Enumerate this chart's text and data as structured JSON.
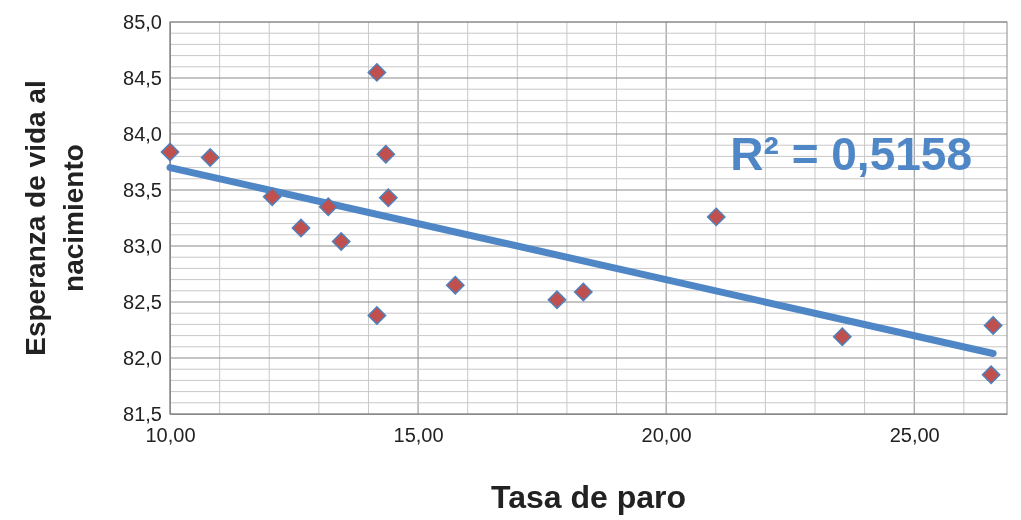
{
  "chart_data": {
    "type": "scatter",
    "xlabel": "Tasa de paro",
    "ylabel": "Esperanza de vida al nacimiento",
    "xlim": [
      10,
      26.87
    ],
    "ylim": [
      81.5,
      85
    ],
    "xticks": [
      {
        "value": 10,
        "label": "10,00"
      },
      {
        "value": 11,
        "label": null
      },
      {
        "value": 12,
        "label": null
      },
      {
        "value": 13,
        "label": null
      },
      {
        "value": 14,
        "label": null
      },
      {
        "value": 15,
        "label": "15,00"
      },
      {
        "value": 16,
        "label": null
      },
      {
        "value": 17,
        "label": null
      },
      {
        "value": 18,
        "label": null
      },
      {
        "value": 19,
        "label": null
      },
      {
        "value": 20,
        "label": "20,00"
      },
      {
        "value": 21,
        "label": null
      },
      {
        "value": 22,
        "label": null
      },
      {
        "value": 23,
        "label": null
      },
      {
        "value": 24,
        "label": null
      },
      {
        "value": 25,
        "label": "25,00"
      },
      {
        "value": 26,
        "label": null
      }
    ],
    "yticks": [
      {
        "value": 81.5,
        "label": "81,5"
      },
      {
        "value": 81.6,
        "label": null
      },
      {
        "value": 81.7,
        "label": null
      },
      {
        "value": 81.8,
        "label": null
      },
      {
        "value": 81.9,
        "label": null
      },
      {
        "value": 82,
        "label": "82,0"
      },
      {
        "value": 82.1,
        "label": null
      },
      {
        "value": 82.2,
        "label": null
      },
      {
        "value": 82.3,
        "label": null
      },
      {
        "value": 82.4,
        "label": null
      },
      {
        "value": 82.5,
        "label": "82,5"
      },
      {
        "value": 82.6,
        "label": null
      },
      {
        "value": 82.7,
        "label": null
      },
      {
        "value": 82.8,
        "label": null
      },
      {
        "value": 82.9,
        "label": null
      },
      {
        "value": 83,
        "label": "83,0"
      },
      {
        "value": 83.1,
        "label": null
      },
      {
        "value": 83.2,
        "label": null
      },
      {
        "value": 83.3,
        "label": null
      },
      {
        "value": 83.4,
        "label": null
      },
      {
        "value": 83.5,
        "label": "83,5"
      },
      {
        "value": 83.6,
        "label": null
      },
      {
        "value": 83.7,
        "label": null
      },
      {
        "value": 83.8,
        "label": null
      },
      {
        "value": 83.9,
        "label": null
      },
      {
        "value": 84,
        "label": "84,0"
      },
      {
        "value": 84.1,
        "label": null
      },
      {
        "value": 84.2,
        "label": null
      },
      {
        "value": 84.3,
        "label": null
      },
      {
        "value": 84.4,
        "label": null
      },
      {
        "value": 84.5,
        "label": "84,5"
      },
      {
        "value": 84.6,
        "label": null
      },
      {
        "value": 84.7,
        "label": null
      },
      {
        "value": 84.8,
        "label": null
      },
      {
        "value": 84.9,
        "label": null
      },
      {
        "value": 85,
        "label": "85,0"
      }
    ],
    "grid": true,
    "annotations": [
      "R² = 0,5158"
    ],
    "series": [
      {
        "marker": "diamond",
        "color": "#c0504d",
        "x": [
          10.0,
          10.81,
          12.06,
          12.64,
          13.19,
          13.45,
          14.17,
          14.17,
          14.35,
          14.4,
          15.75,
          17.8,
          18.33,
          21.01,
          23.55,
          26.59,
          26.55
        ],
        "values": [
          83.84,
          83.79,
          83.44,
          83.16,
          83.35,
          83.04,
          84.55,
          82.38,
          83.82,
          83.43,
          82.65,
          82.52,
          82.59,
          83.26,
          82.19,
          82.29,
          81.85
        ]
      },
      {
        "type": "line",
        "marker": "none",
        "color": "#4f86c6",
        "x": [
          10,
          26.59
        ],
        "values": [
          83.7,
          82.04
        ]
      }
    ]
  }
}
